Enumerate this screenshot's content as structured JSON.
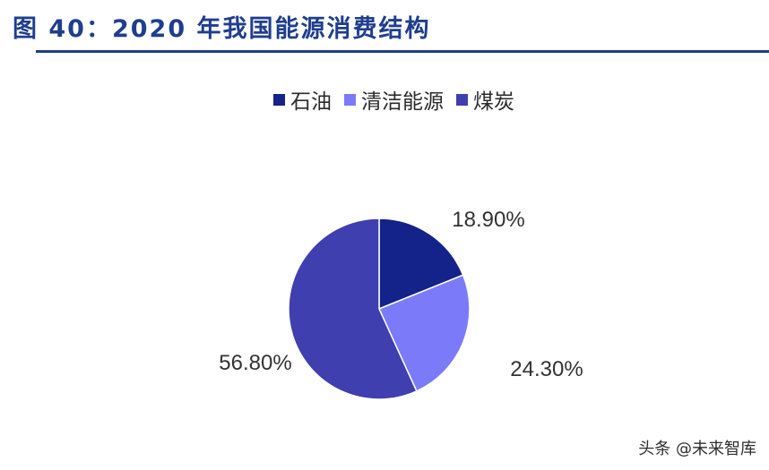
{
  "header": {
    "title": "图 40：2020 年我国能源消费结构"
  },
  "watermark": "头条 @未来智库",
  "chart_data": {
    "type": "pie",
    "title": "图 40：2020 年我国能源消费结构",
    "categories": [
      "石油",
      "清洁能源",
      "煤炭"
    ],
    "values": [
      18.9,
      24.3,
      56.8
    ],
    "data_labels": [
      "18.90%",
      "24.30%",
      "56.80%"
    ],
    "colors": [
      "#13238a",
      "#7b7bfa",
      "#3f3fb0"
    ],
    "legend_position": "top"
  }
}
